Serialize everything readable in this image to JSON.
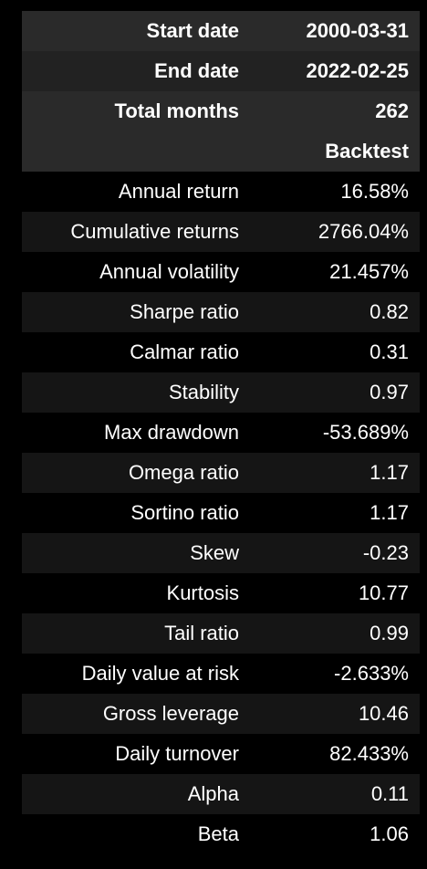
{
  "header_rows": [
    {
      "label": "Start date",
      "value": "2000-03-31"
    },
    {
      "label": "End date",
      "value": "2022-02-25"
    },
    {
      "label": "Total months",
      "value": "262"
    }
  ],
  "column_header": {
    "label": "",
    "value": "Backtest"
  },
  "rows": [
    {
      "label": "Annual return",
      "value": "16.58%"
    },
    {
      "label": "Cumulative returns",
      "value": "2766.04%"
    },
    {
      "label": "Annual volatility",
      "value": "21.457%"
    },
    {
      "label": "Sharpe ratio",
      "value": "0.82"
    },
    {
      "label": "Calmar ratio",
      "value": "0.31"
    },
    {
      "label": "Stability",
      "value": "0.97"
    },
    {
      "label": "Max drawdown",
      "value": "-53.689%"
    },
    {
      "label": "Omega ratio",
      "value": "1.17"
    },
    {
      "label": "Sortino ratio",
      "value": "1.17"
    },
    {
      "label": "Skew",
      "value": "-0.23"
    },
    {
      "label": "Kurtosis",
      "value": "10.77"
    },
    {
      "label": "Tail ratio",
      "value": "0.99"
    },
    {
      "label": "Daily value at risk",
      "value": "-2.633%"
    },
    {
      "label": "Gross leverage",
      "value": "10.46"
    },
    {
      "label": "Daily turnover",
      "value": "82.433%"
    },
    {
      "label": "Alpha",
      "value": "0.11"
    },
    {
      "label": "Beta",
      "value": "1.06"
    }
  ]
}
